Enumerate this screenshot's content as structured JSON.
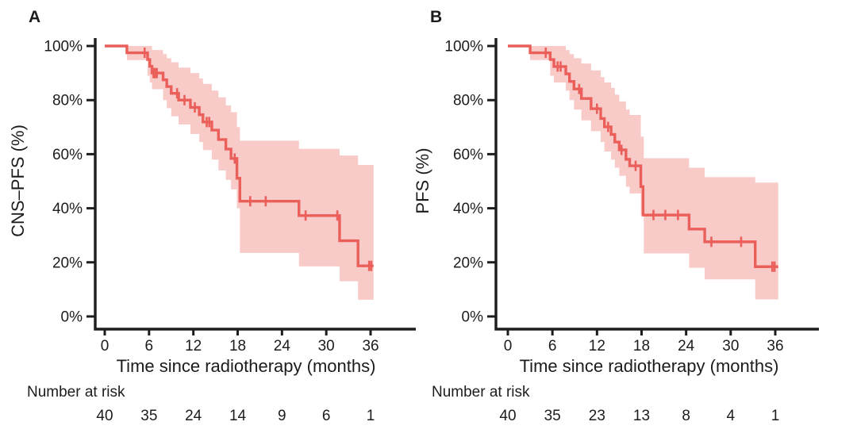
{
  "chart_data": [
    {
      "type": "km_step",
      "panel_letter": "A",
      "y_label": "CNS–PFS (%)",
      "x_label": "Time since radiotherapy (months)",
      "risk_label": "Number at risk",
      "x_ticks": [
        0,
        6,
        12,
        18,
        24,
        30,
        36
      ],
      "y_tick_values": [
        100,
        80,
        60,
        40,
        20,
        0
      ],
      "y_tick_labels": [
        "100%",
        "80%",
        "60%",
        "40%",
        "20%",
        "0%"
      ],
      "xlim": [
        0,
        38
      ],
      "ylim": [
        0,
        100
      ],
      "risk_counts": [
        40,
        35,
        24,
        14,
        9,
        6,
        1
      ],
      "line_color": "#EB5F5A",
      "band_color": "#F8CAC8",
      "t_end": 36.4,
      "steps": [
        [
          0,
          100
        ],
        [
          3,
          97.5
        ],
        [
          5.8,
          95
        ],
        [
          6.1,
          92.5
        ],
        [
          6.4,
          90
        ],
        [
          7.9,
          87.5
        ],
        [
          8.4,
          85
        ],
        [
          9.0,
          82.5
        ],
        [
          10.0,
          80
        ],
        [
          11.6,
          77.3
        ],
        [
          12.8,
          74.6
        ],
        [
          13.3,
          71.9
        ],
        [
          14.5,
          68.9
        ],
        [
          15.4,
          65.4
        ],
        [
          16.4,
          61.9
        ],
        [
          17.1,
          58.4
        ],
        [
          17.9,
          51.1
        ],
        [
          18.3,
          42.6
        ],
        [
          26.3,
          37.3
        ],
        [
          31.8,
          28.0
        ],
        [
          34.3,
          18.7
        ]
      ],
      "censors": [
        [
          5.4,
          97.5
        ],
        [
          6.6,
          90
        ],
        [
          6.8,
          90
        ],
        [
          7.05,
          90
        ],
        [
          9.8,
          82.5
        ],
        [
          10.8,
          80
        ],
        [
          12.2,
          77.3
        ],
        [
          13.8,
          71.9
        ],
        [
          14.15,
          71.9
        ],
        [
          17.6,
          58.4
        ],
        [
          19.7,
          42.6
        ],
        [
          21.8,
          42.6
        ],
        [
          27.2,
          37.3
        ],
        [
          31.5,
          37.3
        ],
        [
          35.8,
          18.7
        ],
        [
          36.1,
          18.7
        ]
      ],
      "ci": [
        [
          0,
          100,
          100
        ],
        [
          3,
          94.8,
          100
        ],
        [
          5.8,
          89,
          100
        ],
        [
          6.1,
          86.5,
          100
        ],
        [
          6.4,
          84,
          98.5
        ],
        [
          7.9,
          80,
          97
        ],
        [
          8.4,
          77,
          95.5
        ],
        [
          9.0,
          74,
          94
        ],
        [
          10.0,
          71,
          92
        ],
        [
          11.6,
          67.5,
          90
        ],
        [
          12.8,
          64.5,
          88
        ],
        [
          13.3,
          61.5,
          86
        ],
        [
          14.5,
          58,
          83.5
        ],
        [
          15.4,
          54,
          81
        ],
        [
          16.4,
          50.5,
          78
        ],
        [
          17.1,
          47,
          75.5
        ],
        [
          17.9,
          40,
          70
        ],
        [
          18.3,
          23.5,
          65
        ],
        [
          26.3,
          18.5,
          62
        ],
        [
          31.8,
          13,
          59.5
        ],
        [
          34.3,
          6.2,
          56
        ]
      ]
    },
    {
      "type": "km_step",
      "panel_letter": "B",
      "y_label": "PFS (%)",
      "x_label": "Time since radiotherapy (months)",
      "risk_label": "Number at risk",
      "x_ticks": [
        0,
        6,
        12,
        18,
        24,
        30,
        36
      ],
      "y_tick_values": [
        100,
        80,
        60,
        40,
        20,
        0
      ],
      "y_tick_labels": [
        "100%",
        "80%",
        "60%",
        "40%",
        "20%",
        "0%"
      ],
      "xlim": [
        0,
        38
      ],
      "ylim": [
        0,
        100
      ],
      "risk_counts": [
        40,
        35,
        23,
        13,
        8,
        4,
        1
      ],
      "line_color": "#EB5F5A",
      "band_color": "#F8CAC8",
      "t_end": 36.4,
      "steps": [
        [
          0,
          100
        ],
        [
          3,
          97.5
        ],
        [
          5.7,
          95
        ],
        [
          6.2,
          92.4
        ],
        [
          7.8,
          89.7
        ],
        [
          8.3,
          86.9
        ],
        [
          8.9,
          84.1
        ],
        [
          9.9,
          80.6
        ],
        [
          11.2,
          76.8
        ],
        [
          12.5,
          73.2
        ],
        [
          13.0,
          70.1
        ],
        [
          13.9,
          67.3
        ],
        [
          14.4,
          64.5
        ],
        [
          15.0,
          61.6
        ],
        [
          15.9,
          58.1
        ],
        [
          16.4,
          55.7
        ],
        [
          17.9,
          48.0
        ],
        [
          18.2,
          37.5
        ],
        [
          24.4,
          32.3
        ],
        [
          26.5,
          27.6
        ],
        [
          33.3,
          18.4
        ]
      ],
      "censors": [
        [
          5.1,
          97.5
        ],
        [
          6.7,
          92.4
        ],
        [
          7.1,
          92.4
        ],
        [
          9.6,
          84.1
        ],
        [
          12.0,
          76.8
        ],
        [
          13.5,
          70.1
        ],
        [
          15.3,
          61.6
        ],
        [
          17.2,
          55.7
        ],
        [
          19.6,
          37.5
        ],
        [
          21.2,
          37.5
        ],
        [
          22.9,
          37.5
        ],
        [
          27.4,
          27.6
        ],
        [
          31.4,
          27.6
        ],
        [
          35.6,
          18.4
        ],
        [
          35.9,
          18.4
        ]
      ],
      "ci": [
        [
          0,
          100,
          100
        ],
        [
          3,
          94.8,
          100
        ],
        [
          5.7,
          89,
          100
        ],
        [
          6.2,
          86.5,
          100
        ],
        [
          7.8,
          83.5,
          98.5
        ],
        [
          8.3,
          80,
          97
        ],
        [
          8.9,
          76.5,
          95.5
        ],
        [
          9.9,
          72.5,
          93.5
        ],
        [
          11.2,
          68.5,
          91
        ],
        [
          12.5,
          64.5,
          88.5
        ],
        [
          13.0,
          61,
          86.5
        ],
        [
          13.9,
          58,
          84.5
        ],
        [
          14.4,
          55,
          82
        ],
        [
          15.0,
          52,
          79.5
        ],
        [
          15.9,
          48,
          76.5
        ],
        [
          16.4,
          45.5,
          74.5
        ],
        [
          17.9,
          37.5,
          66.5
        ],
        [
          18.3,
          23.3,
          58.5
        ],
        [
          24.4,
          18,
          55
        ],
        [
          26.5,
          13.7,
          51.5
        ],
        [
          33.3,
          6.3,
          49.5
        ]
      ]
    }
  ]
}
